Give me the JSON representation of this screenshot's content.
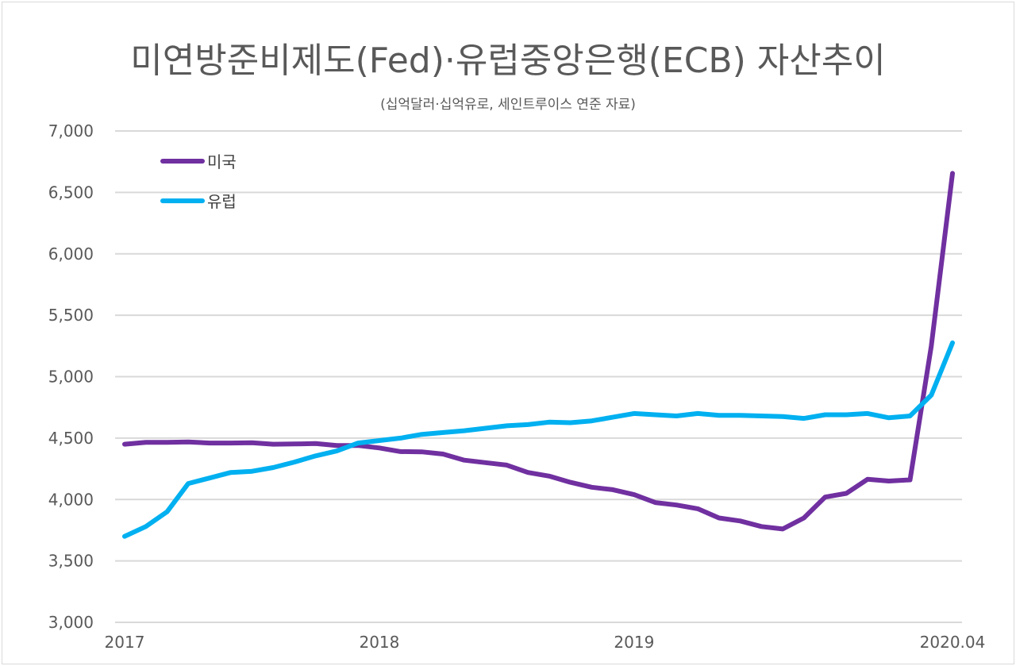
{
  "chart_data": {
    "type": "line",
    "title": "미연방준비제도(Fed)·유럽중앙은행(ECB) 자산추이",
    "subtitle": "(십억달러·십억유로, 세인트루이스 연준 자료)",
    "xlabel": "",
    "ylabel": "",
    "ylim": [
      3000,
      7000
    ],
    "yticks": [
      "3,000",
      "3,500",
      "4,000",
      "4,500",
      "5,000",
      "5,500",
      "6,000",
      "6,500",
      "7,000"
    ],
    "ytick_values": [
      3000,
      3500,
      4000,
      4500,
      5000,
      5500,
      6000,
      6500,
      7000
    ],
    "xticks": [
      {
        "label": "2017",
        "index": 0
      },
      {
        "label": "2018",
        "index": 12
      },
      {
        "label": "2019",
        "index": 24
      },
      {
        "label": "2020.04",
        "index": 39
      }
    ],
    "grid": true,
    "legend": "top-left",
    "series": [
      {
        "name": "미국",
        "color": "#7030a0",
        "values": [
          4450,
          4465,
          4465,
          4468,
          4460,
          4460,
          4462,
          4450,
          4452,
          4455,
          4440,
          4440,
          4420,
          4390,
          4388,
          4370,
          4320,
          4300,
          4280,
          4220,
          4190,
          4140,
          4100,
          4080,
          4040,
          3975,
          3955,
          3925,
          3850,
          3825,
          3780,
          3760,
          3850,
          4020,
          4050,
          4165,
          4150,
          4160,
          5250,
          6655
        ]
      },
      {
        "name": "유럽",
        "color": "#00b0f0",
        "values": [
          3700,
          3780,
          3900,
          4130,
          4175,
          4220,
          4230,
          4260,
          4305,
          4355,
          4395,
          4460,
          4480,
          4500,
          4530,
          4545,
          4560,
          4580,
          4600,
          4610,
          4630,
          4625,
          4640,
          4670,
          4700,
          4690,
          4680,
          4700,
          4685,
          4685,
          4680,
          4675,
          4660,
          4690,
          4690,
          4700,
          4665,
          4680,
          4850,
          5275
        ]
      }
    ]
  }
}
